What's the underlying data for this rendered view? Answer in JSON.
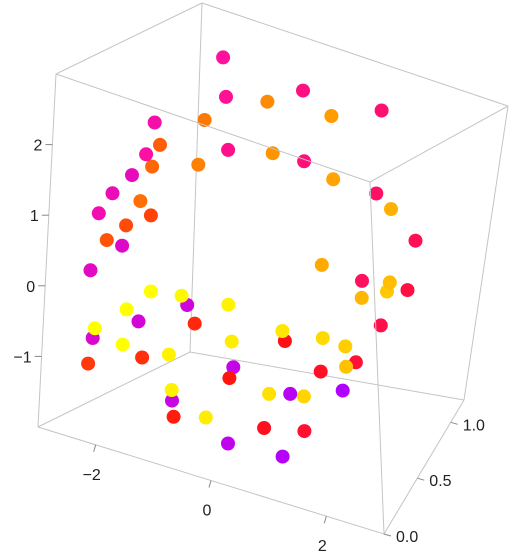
{
  "chart_data": {
    "type": "scatter3d",
    "title": "",
    "xlabel": "",
    "ylabel": "",
    "zlabel": "",
    "axes": {
      "x": {
        "range": [
          -3,
          3
        ],
        "ticks": [
          {
            "v": -2,
            "label": "−2"
          },
          {
            "v": 0,
            "label": "0"
          },
          {
            "v": 2,
            "label": "2"
          }
        ]
      },
      "y": {
        "range": [
          0,
          1.2
        ],
        "ticks": [
          {
            "v": 0,
            "label": "0.0"
          },
          {
            "v": 0.5,
            "label": "0.5"
          },
          {
            "v": 1,
            "label": "1.0"
          }
        ]
      },
      "z": {
        "range": [
          -2,
          3
        ],
        "ticks": [
          {
            "v": -1,
            "label": "−1"
          },
          {
            "v": 0,
            "label": "0"
          },
          {
            "v": 1,
            "label": "1"
          },
          {
            "v": 2,
            "label": "2"
          }
        ]
      }
    },
    "box": true,
    "grid": false,
    "legend": "none",
    "color_function": "color varies with the spiral parameter t: yellow → orange → red → magenta → purple",
    "color_stops": [
      "#ffff00",
      "#ff9f00",
      "#ff1010",
      "#ff10a0",
      "#b000ff"
    ],
    "series": [
      {
        "shape": "swiss-roll",
        "points": [
          [
            -2.0,
            0.36,
            -1.15,
            0.3
          ],
          [
            -2.11,
            0.5,
            -0.9,
            0.3
          ],
          [
            -1.6,
            0.9,
            -1.21,
            0.4
          ],
          [
            -1.4,
            0.55,
            -1.44,
            0.5
          ],
          [
            -0.95,
            1.05,
            -1.41,
            0.5
          ],
          [
            -2.24,
            0.12,
            -0.6,
            0.3
          ],
          [
            -1.95,
            0.73,
            -0.97,
            0.3
          ],
          [
            -1.0,
            0.24,
            -1.35,
            0.5
          ],
          [
            -0.6,
            0.8,
            -1.45,
            0.6
          ],
          [
            -0.3,
            0.15,
            -1.42,
            0.6
          ],
          [
            0.1,
            0.95,
            -1.36,
            0.7
          ],
          [
            0.5,
            0.4,
            -1.28,
            0.8
          ],
          [
            0.9,
            0.85,
            -1.1,
            0.9
          ],
          [
            1.2,
            0.3,
            -0.98,
            1.0
          ],
          [
            1.5,
            0.65,
            -0.75,
            1.1
          ],
          [
            1.8,
            1.0,
            -0.45,
            1.2
          ],
          [
            2.0,
            0.2,
            -0.2,
            1.3
          ],
          [
            2.1,
            0.75,
            0.15,
            1.4
          ],
          [
            2.05,
            0.35,
            0.55,
            1.5
          ],
          [
            1.9,
            0.9,
            0.9,
            1.6
          ],
          [
            1.6,
            0.1,
            1.3,
            1.7
          ],
          [
            1.2,
            0.6,
            1.62,
            1.8
          ],
          [
            0.75,
            0.95,
            1.85,
            1.9
          ],
          [
            0.3,
            0.45,
            2.0,
            2.0
          ],
          [
            -0.2,
            0.8,
            2.05,
            2.1
          ],
          [
            -0.7,
            0.2,
            1.98,
            2.2
          ],
          [
            -1.1,
            0.65,
            1.8,
            2.3
          ],
          [
            -1.5,
            0.05,
            1.5,
            2.4
          ],
          [
            -1.8,
            0.5,
            1.2,
            2.5
          ],
          [
            -2.1,
            0.9,
            0.8,
            2.6
          ],
          [
            -2.3,
            0.3,
            0.35,
            2.7
          ],
          [
            -2.4,
            0.7,
            -0.1,
            2.8
          ],
          [
            -2.35,
            1.05,
            -0.5,
            2.9
          ],
          [
            -2.2,
            0.0,
            -0.9,
            3.0
          ],
          [
            -1.7,
            0.4,
            -1.32,
            3.1
          ],
          [
            -1.3,
            0.85,
            -1.45,
            3.2
          ],
          [
            -0.85,
            0.15,
            -1.55,
            3.3
          ],
          [
            -0.4,
            0.6,
            -1.6,
            3.4
          ],
          [
            0.1,
            1.0,
            -1.58,
            3.5
          ],
          [
            0.6,
            0.25,
            -1.5,
            3.6
          ],
          [
            1.05,
            0.7,
            -1.3,
            3.7
          ],
          [
            1.5,
            0.05,
            -1.0,
            3.8
          ],
          [
            1.85,
            0.5,
            -0.65,
            3.9
          ],
          [
            2.2,
            0.95,
            -0.25,
            4.0
          ],
          [
            2.4,
            0.35,
            0.25,
            4.1
          ],
          [
            2.45,
            0.8,
            0.75,
            4.2
          ],
          [
            2.3,
            0.1,
            1.25,
            4.3
          ],
          [
            2.0,
            0.55,
            1.7,
            4.4
          ],
          [
            1.55,
            1.0,
            2.05,
            4.5
          ],
          [
            1.0,
            0.3,
            2.3,
            4.6
          ],
          [
            0.45,
            0.75,
            2.45,
            4.7
          ],
          [
            -0.1,
            0.1,
            2.5,
            4.8
          ],
          [
            -0.65,
            0.55,
            2.4,
            4.9
          ],
          [
            -1.15,
            0.95,
            2.2,
            5.0
          ],
          [
            -1.6,
            0.2,
            1.9,
            5.1
          ],
          [
            -1.95,
            0.65,
            1.55,
            5.2
          ],
          [
            -2.2,
            0.05,
            1.15,
            5.3
          ],
          [
            -2.4,
            0.45,
            0.75,
            5.4
          ],
          [
            -2.5,
            0.85,
            0.35,
            5.5
          ],
          [
            -2.5,
            0.25,
            -0.05,
            5.6
          ],
          [
            -2.45,
            0.7,
            -0.4,
            5.7
          ],
          [
            -2.3,
            0.15,
            -0.8,
            5.8
          ],
          [
            -2.0,
            0.6,
            -1.2,
            5.9
          ],
          [
            -1.6,
            1.0,
            -1.5,
            6.0
          ],
          [
            -1.1,
            0.35,
            -1.7,
            6.1
          ],
          [
            -0.55,
            0.8,
            -1.8,
            6.2
          ],
          [
            0.05,
            0.2,
            -1.78,
            6.3
          ],
          [
            0.6,
            0.65,
            -1.65,
            6.4
          ],
          [
            1.15,
            0.05,
            -1.45,
            6.5
          ],
          [
            1.65,
            0.5,
            -1.1,
            6.6
          ]
        ]
      }
    ],
    "marker": {
      "shape": "circle"
    }
  }
}
